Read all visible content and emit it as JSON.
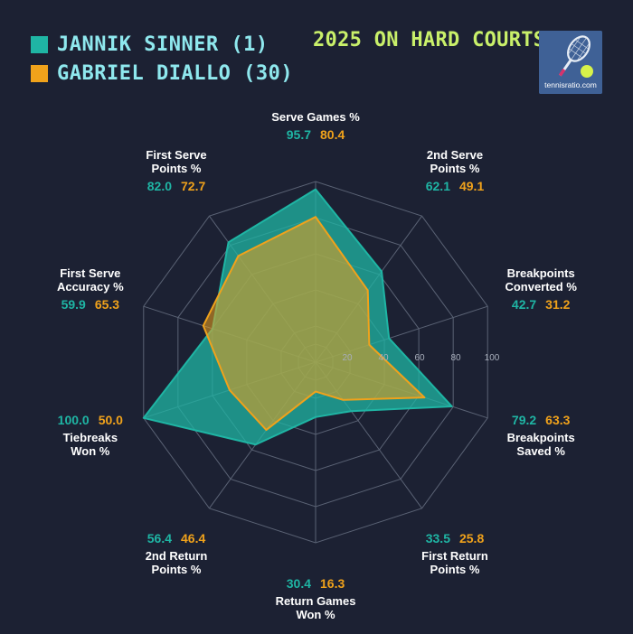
{
  "legend": [
    {
      "name": "JANNIK SINNER (1)",
      "color": "#1fb5a4"
    },
    {
      "name": "GABRIEL DIALLO (30)",
      "color": "#f0a21b"
    }
  ],
  "title": "2025 ON HARD COURTS",
  "logo": {
    "text": "tennisratio.com",
    "icon": "tennis-racket-ball-icon"
  },
  "chart_data": {
    "type": "radar",
    "title": "2025 ON HARD COURTS",
    "rlim": [
      0,
      100
    ],
    "r_ticks": [
      "20",
      "40",
      "60",
      "80",
      "100"
    ],
    "grid": true,
    "legend_position": "top-left",
    "categories": [
      "Serve Games %",
      "2nd Serve Points %",
      "Breakpoints Converted %",
      "Breakpoints Saved %",
      "First Return Points %",
      "Return Games Won %",
      "2nd Return Points %",
      "Tiebreaks Won %",
      "First Serve Accuracy %",
      "First Serve Points %"
    ],
    "label_lines": [
      [
        "Serve Games %"
      ],
      [
        "2nd Serve",
        "Points %"
      ],
      [
        "Breakpoints",
        "Converted %"
      ],
      [
        "Breakpoints",
        "Saved %"
      ],
      [
        "First Return",
        "Points %"
      ],
      [
        "Return Games",
        "Won %"
      ],
      [
        "2nd Return",
        "Points %"
      ],
      [
        "Tiebreaks",
        "Won %"
      ],
      [
        "First Serve",
        "Accuracy %"
      ],
      [
        "First Serve",
        "Points %"
      ]
    ],
    "series": [
      {
        "name": "JANNIK SINNER (1)",
        "color": "#1fb5a4",
        "values": [
          95.7,
          62.1,
          42.7,
          79.2,
          33.5,
          30.4,
          56.4,
          100.0,
          59.9,
          82.0
        ],
        "labels": [
          "95.7",
          "62.1",
          "42.7",
          "79.2",
          "33.5",
          "30.4",
          "56.4",
          "100.0",
          "59.9",
          "82.0"
        ]
      },
      {
        "name": "GABRIEL DIALLO (30)",
        "color": "#f0a21b",
        "values": [
          80.4,
          49.1,
          31.2,
          63.3,
          25.8,
          16.3,
          46.4,
          50.0,
          65.3,
          72.7
        ],
        "labels": [
          "80.4",
          "49.1",
          "31.2",
          "63.3",
          "25.8",
          "16.3",
          "46.4",
          "50.0",
          "65.3",
          "72.7"
        ]
      }
    ]
  }
}
